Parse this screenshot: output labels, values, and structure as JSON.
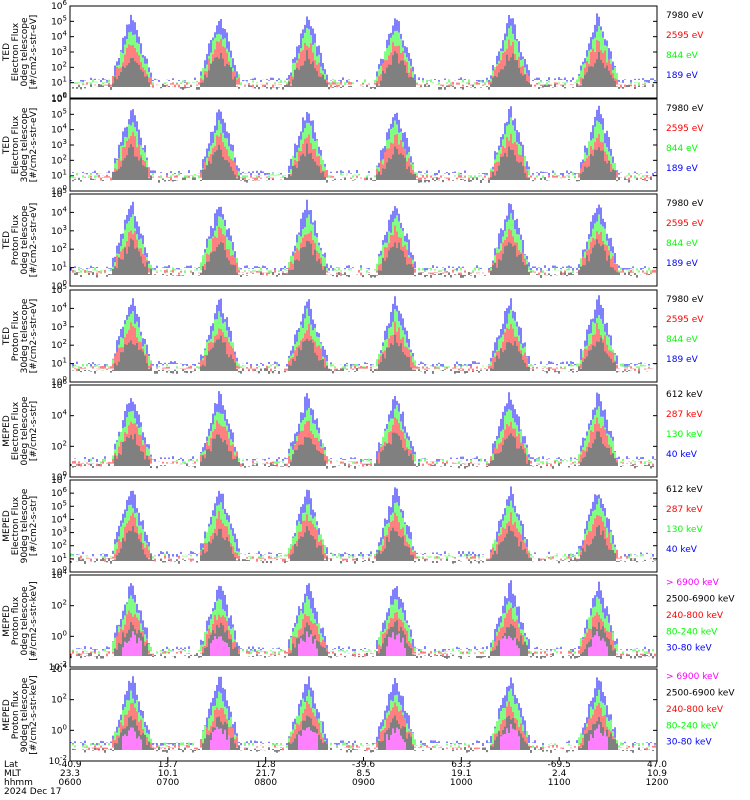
{
  "colors": {
    "blue": "#0000ff",
    "red": "#ff0000",
    "green": "#00ff00",
    "black": "#000000",
    "magenta": "#ff00ff"
  },
  "chart_data": [
    {
      "type": "line",
      "ylabel_lines": [
        "TED",
        "Electron Flux",
        "0deg telescope",
        "[#/cm2-s-str-eV]"
      ],
      "yscale": "log",
      "ylim": [
        1,
        1000000
      ],
      "yticks": [
        "10^0",
        "10^1",
        "10^2",
        "10^3",
        "10^4",
        "10^5",
        "10^6"
      ],
      "legend": [
        {
          "label": "7980 eV",
          "color": "black"
        },
        {
          "label": "2595 eV",
          "color": "red"
        },
        {
          "label": "844 eV",
          "color": "green"
        },
        {
          "label": "189 eV",
          "color": "blue"
        }
      ]
    },
    {
      "type": "line",
      "ylabel_lines": [
        "TED",
        "Electron Flux",
        "30deg telescope",
        "[#/cm2-s-str-eV]"
      ],
      "yscale": "log",
      "ylim": [
        1,
        1000000
      ],
      "yticks": [
        "10^0",
        "10^1",
        "10^2",
        "10^3",
        "10^4",
        "10^5",
        "10^6"
      ],
      "legend": [
        {
          "label": "7980 eV",
          "color": "black"
        },
        {
          "label": "2595 eV",
          "color": "red"
        },
        {
          "label": "844 eV",
          "color": "green"
        },
        {
          "label": "189 eV",
          "color": "blue"
        }
      ]
    },
    {
      "type": "line",
      "ylabel_lines": [
        "TED",
        "Proton Flux",
        "0deg telescope",
        "[#/cm2-s-str-eV]"
      ],
      "yscale": "log",
      "ylim": [
        1,
        100000
      ],
      "yticks": [
        "10^0",
        "10^1",
        "10^2",
        "10^3",
        "10^4",
        "10^5"
      ],
      "legend": [
        {
          "label": "7980 eV",
          "color": "black"
        },
        {
          "label": "2595 eV",
          "color": "red"
        },
        {
          "label": "844 eV",
          "color": "green"
        },
        {
          "label": "189 eV",
          "color": "blue"
        }
      ]
    },
    {
      "type": "line",
      "ylabel_lines": [
        "TED",
        "Proton Flux",
        "30deg telescope",
        "[#/cm2-s-str-eV]"
      ],
      "yscale": "log",
      "ylim": [
        1,
        100000
      ],
      "yticks": [
        "10^0",
        "10^1",
        "10^2",
        "10^3",
        "10^4",
        "10^5"
      ],
      "legend": [
        {
          "label": "7980 eV",
          "color": "black"
        },
        {
          "label": "2595 eV",
          "color": "red"
        },
        {
          "label": "844 eV",
          "color": "green"
        },
        {
          "label": "189 eV",
          "color": "blue"
        }
      ]
    },
    {
      "type": "line",
      "ylabel_lines": [
        "MEPED",
        "Electron Flux",
        "0deg telescope",
        "[#/cm2-s-str]"
      ],
      "yscale": "log",
      "ylim": [
        1,
        1000000
      ],
      "yticks": [
        "10^0",
        "10^2",
        "10^4",
        "10^6"
      ],
      "legend": [
        {
          "label": "612 keV",
          "color": "black"
        },
        {
          "label": "287 keV",
          "color": "red"
        },
        {
          "label": "130 keV",
          "color": "green"
        },
        {
          "label": "40 keV",
          "color": "blue"
        }
      ]
    },
    {
      "type": "line",
      "ylabel_lines": [
        "MEPED",
        "Electron Flux",
        "90deg telescope",
        "[#/cm2-s-str]"
      ],
      "yscale": "log",
      "ylim": [
        1,
        10000000
      ],
      "yticks": [
        "10^0",
        "10^1",
        "10^2",
        "10^3",
        "10^4",
        "10^5",
        "10^6",
        "10^7"
      ],
      "legend": [
        {
          "label": "612 keV",
          "color": "black"
        },
        {
          "label": "287 keV",
          "color": "red"
        },
        {
          "label": "130 keV",
          "color": "green"
        },
        {
          "label": "40 keV",
          "color": "blue"
        }
      ]
    },
    {
      "type": "line",
      "ylabel_lines": [
        "MEPED",
        "Proton flux",
        "0deg telescope",
        "[#/cm2-s-str-keV]"
      ],
      "yscale": "log",
      "ylim": [
        0.01,
        100000
      ],
      "yticks": [
        "10^-2",
        "10^0",
        "10^2",
        "10^4"
      ],
      "legend": [
        {
          "label": "> 6900 keV",
          "color": "magenta"
        },
        {
          "label": "2500-6900 keV",
          "color": "black"
        },
        {
          "label": "240-800 keV",
          "color": "red"
        },
        {
          "label": "80-240 keV",
          "color": "green"
        },
        {
          "label": "30-80 keV",
          "color": "blue"
        }
      ]
    },
    {
      "type": "line",
      "ylabel_lines": [
        "MEPED",
        "Proton flux",
        "90deg telescope",
        "[#/cm2-s-str-keV]"
      ],
      "yscale": "log",
      "ylim": [
        0.01,
        100000
      ],
      "yticks": [
        "10^-2",
        "10^0",
        "10^2",
        "10^4"
      ],
      "legend": [
        {
          "label": "> 6900 keV",
          "color": "magenta"
        },
        {
          "label": "2500-6900 keV",
          "color": "black"
        },
        {
          "label": "240-800 keV",
          "color": "red"
        },
        {
          "label": "80-240 keV",
          "color": "green"
        },
        {
          "label": "30-80 keV",
          "color": "blue"
        }
      ]
    }
  ],
  "xaxis": {
    "row_labels": [
      "Lat",
      "MLT",
      "hhmm",
      "2024 Dec 17"
    ],
    "ticks": [
      {
        "lat": "-40.9",
        "mlt": "23.3",
        "hhmm": "0600"
      },
      {
        "lat": "13.7",
        "mlt": "10.1",
        "hhmm": "0700"
      },
      {
        "lat": "12.8",
        "mlt": "21.7",
        "hhmm": "0800"
      },
      {
        "lat": "-39.6",
        "mlt": "8.5",
        "hhmm": "0900"
      },
      {
        "lat": "63.3",
        "mlt": "19.1",
        "hhmm": "1000"
      },
      {
        "lat": "-69.5",
        "mlt": "2.4",
        "hhmm": "1100"
      },
      {
        "lat": "47.0",
        "mlt": "10.9",
        "hhmm": "1200"
      }
    ]
  }
}
